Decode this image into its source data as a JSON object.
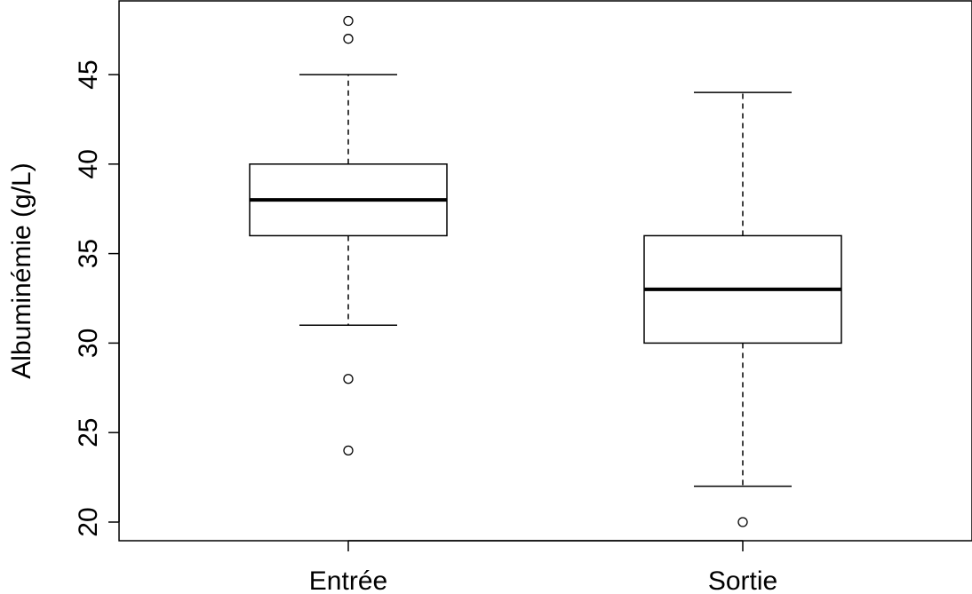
{
  "chart_data": {
    "type": "boxplot",
    "title": "",
    "xlabel": "",
    "ylabel": "Albuminémie (g/L)",
    "ylim": [
      19,
      49
    ],
    "yticks": [
      20,
      25,
      30,
      35,
      40,
      45
    ],
    "grid": false,
    "categories": [
      "Entrée",
      "Sortie"
    ],
    "boxes": [
      {
        "category": "Entrée",
        "whisker_low": 31,
        "q1": 36,
        "median": 38,
        "q3": 40,
        "whisker_high": 45,
        "outliers": [
          48,
          47,
          28,
          24
        ]
      },
      {
        "category": "Sortie",
        "whisker_low": 22,
        "q1": 30,
        "median": 33,
        "q3": 36,
        "whisker_high": 44,
        "outliers": [
          20
        ]
      }
    ]
  }
}
